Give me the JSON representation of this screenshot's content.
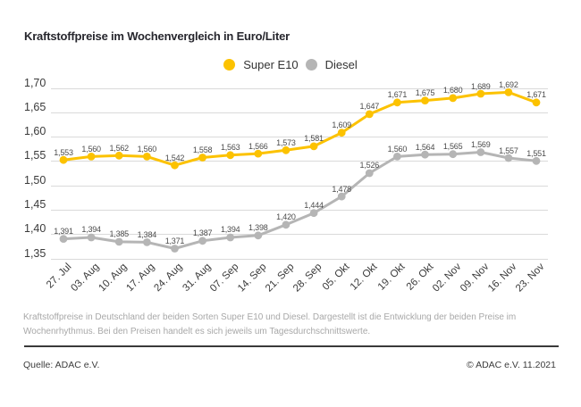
{
  "title": "Kraftstoffpreise im Wochenvergleich in Euro/Liter",
  "chart_data": {
    "type": "line",
    "x": [
      "27. Jul",
      "03. Aug",
      "10. Aug",
      "17. Aug",
      "24. Aug",
      "31. Aug",
      "07. Sep",
      "14. Sep",
      "21. Sep",
      "28. Sep",
      "05. Okt",
      "12. Okt",
      "19. Okt",
      "26. Okt",
      "02. Nov",
      "09. Nov",
      "16. Nov",
      "23. Nov"
    ],
    "series": [
      {
        "name": "Super E10",
        "color": "#FCC200",
        "values": [
          1.553,
          1.56,
          1.562,
          1.56,
          1.542,
          1.558,
          1.563,
          1.566,
          1.573,
          1.581,
          1.609,
          1.647,
          1.671,
          1.675,
          1.68,
          1.689,
          1.692,
          1.671
        ]
      },
      {
        "name": "Diesel",
        "color": "#B5B5B5",
        "values": [
          1.391,
          1.394,
          1.385,
          1.384,
          1.371,
          1.387,
          1.394,
          1.398,
          1.42,
          1.444,
          1.478,
          1.526,
          1.56,
          1.564,
          1.565,
          1.569,
          1.557,
          1.551
        ]
      }
    ],
    "yticks": [
      {
        "label": "1,70",
        "value": 1.7
      },
      {
        "label": "1,65",
        "value": 1.65
      },
      {
        "label": "1,60",
        "value": 1.6
      },
      {
        "label": "1,55",
        "value": 1.55
      },
      {
        "label": "1,50",
        "value": 1.5
      },
      {
        "label": "1,45",
        "value": 1.45
      },
      {
        "label": "1,40",
        "value": 1.4
      },
      {
        "label": "1,35",
        "value": 1.35
      }
    ],
    "ylim": [
      1.35,
      1.7
    ],
    "grid": "horizontal",
    "legend_position": "top-center"
  },
  "footnote": {
    "line1": "Kraftstoffpreise in Deutschland der beiden Sorten Super E10 und Diesel. Dargestellt ist die Entwicklung der beiden Preise im",
    "line2": "Wochenrhythmus. Bei den Preisen handelt es sich jeweils um Tagesdurchschnittswerte."
  },
  "source": {
    "left": "Quelle: ADAC e.V.",
    "right": "© ADAC e.V. 11.2021"
  }
}
